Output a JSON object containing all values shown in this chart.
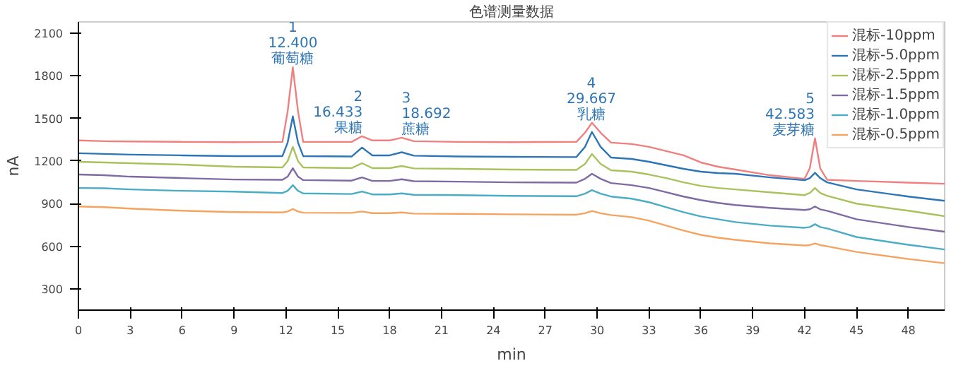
{
  "chart_data": {
    "type": "line",
    "title": "色谱测量数据",
    "xlabel": "min",
    "ylabel": "nA",
    "x": [
      0,
      1.5,
      3,
      6,
      9,
      11.8,
      12.1,
      12.4,
      12.7,
      13,
      15.8,
      16.4,
      17,
      18,
      18.7,
      19.4,
      22,
      25,
      28.8,
      29.3,
      29.7,
      30.2,
      30.8,
      32,
      33,
      34,
      35,
      36,
      37,
      38,
      40,
      42,
      42.3,
      42.6,
      42.9,
      43.3,
      45,
      48,
      50.1
    ],
    "series": [
      {
        "name": "混标-10ppm",
        "color": "#f08080",
        "values": [
          1345,
          1340,
          1338,
          1335,
          1333,
          1335,
          1550,
          1860,
          1550,
          1335,
          1335,
          1375,
          1345,
          1345,
          1365,
          1340,
          1335,
          1333,
          1335,
          1400,
          1470,
          1400,
          1330,
          1320,
          1300,
          1270,
          1240,
          1190,
          1160,
          1140,
          1100,
          1075,
          1150,
          1360,
          1150,
          1068,
          1060,
          1048,
          1040
        ]
      },
      {
        "name": "混标-5.0ppm",
        "color": "#2e75b6",
        "values": [
          1255,
          1250,
          1245,
          1240,
          1235,
          1235,
          1330,
          1515,
          1330,
          1235,
          1232,
          1295,
          1240,
          1240,
          1262,
          1238,
          1232,
          1230,
          1228,
          1300,
          1405,
          1300,
          1225,
          1215,
          1195,
          1170,
          1145,
          1125,
          1115,
          1110,
          1085,
          1065,
          1080,
          1117,
          1080,
          1050,
          1000,
          950,
          920
        ]
      },
      {
        "name": "混标-2.5ppm",
        "color": "#a9c25d",
        "values": [
          1195,
          1190,
          1185,
          1175,
          1160,
          1155,
          1200,
          1300,
          1200,
          1155,
          1150,
          1185,
          1150,
          1150,
          1165,
          1148,
          1145,
          1140,
          1138,
          1180,
          1250,
          1180,
          1135,
          1125,
          1105,
          1080,
          1050,
          1025,
          1010,
          1000,
          980,
          960,
          975,
          1010,
          975,
          955,
          900,
          850,
          812
        ]
      },
      {
        "name": "混标-1.5ppm",
        "color": "#7f6aa3",
        "values": [
          1105,
          1100,
          1090,
          1080,
          1070,
          1068,
          1090,
          1150,
          1090,
          1066,
          1062,
          1085,
          1060,
          1060,
          1072,
          1058,
          1055,
          1050,
          1048,
          1075,
          1110,
          1075,
          1045,
          1030,
          1010,
          980,
          950,
          925,
          905,
          890,
          870,
          855,
          860,
          880,
          860,
          850,
          790,
          735,
          702
        ]
      },
      {
        "name": "混标-1.0ppm",
        "color": "#4bacc6",
        "values": [
          1010,
          1008,
          1000,
          990,
          985,
          975,
          990,
          1030,
          990,
          972,
          968,
          985,
          965,
          965,
          972,
          962,
          960,
          955,
          952,
          970,
          995,
          970,
          950,
          935,
          910,
          875,
          840,
          810,
          790,
          770,
          745,
          730,
          735,
          755,
          735,
          725,
          665,
          610,
          577
        ]
      },
      {
        "name": "混标-0.5ppm",
        "color": "#f4a460",
        "values": [
          880,
          875,
          865,
          850,
          840,
          838,
          845,
          862,
          845,
          836,
          835,
          845,
          833,
          833,
          838,
          830,
          828,
          825,
          822,
          832,
          848,
          832,
          820,
          805,
          780,
          745,
          710,
          680,
          660,
          645,
          620,
          605,
          608,
          620,
          608,
          600,
          560,
          510,
          480
        ]
      }
    ],
    "annotations": [
      {
        "text": "1\n12.400\n葡萄糖",
        "x": 12.4,
        "y": 1860
      },
      {
        "text": "2\n16.433\n果糖",
        "x": 16.433,
        "y": 1375
      },
      {
        "text": "3\n18.692\n蔗糖",
        "x": 18.692,
        "y": 1365
      },
      {
        "text": "4\n29.667\n乳糖",
        "x": 29.667,
        "y": 1470
      },
      {
        "text": "5\n42.583\n麦芽糖",
        "x": 42.583,
        "y": 1360
      }
    ],
    "xlim": [
      0,
      50.1
    ],
    "ylim": [
      150,
      2180
    ],
    "xticks": [
      0,
      3,
      6,
      9,
      12,
      15,
      18,
      21,
      24,
      27,
      30,
      33,
      36,
      39,
      42,
      45,
      48
    ],
    "yticks": [
      300,
      600,
      900,
      1200,
      1500,
      1800,
      2100
    ],
    "legend": "top right",
    "grid": false,
    "marker": "none",
    "line_style": "solid"
  }
}
